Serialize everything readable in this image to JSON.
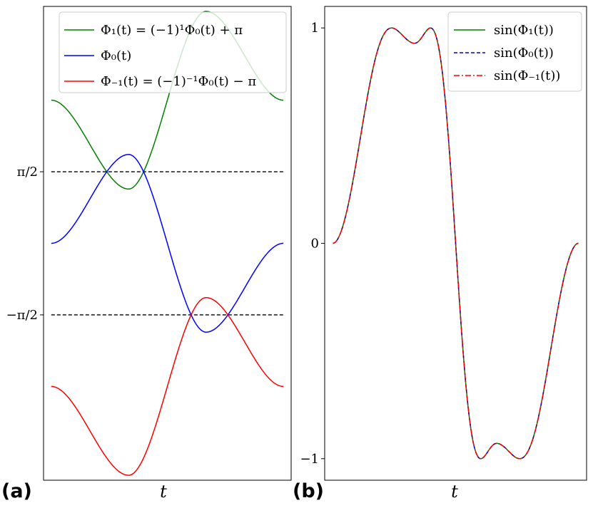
{
  "chart_data": [
    {
      "panel_label": "(a)",
      "type": "line",
      "xlabel": "t",
      "ylabel": "",
      "ylim": [
        -5.2,
        5.2
      ],
      "xlim": [
        -0.1,
        3.1
      ],
      "y_ticks": [
        {
          "value": 1.5708,
          "label": "π/2"
        },
        {
          "value": -1.5708,
          "label": "−π/2"
        }
      ],
      "hlines": [
        1.5708,
        -1.5708
      ],
      "legend": "top-right",
      "series": [
        {
          "name": "Φ₁(t) = (−1)¹Φ₀(t) + π",
          "color": "#008000",
          "style": "solid",
          "formula": "pi - phi0"
        },
        {
          "name": "Φ₀(t)",
          "color": "#0000ff",
          "style": "solid",
          "formula": "phi0"
        },
        {
          "name": "Φ₋₁(t) = (−1)⁻¹Φ₀(t) − π",
          "color": "#ff0000",
          "style": "solid",
          "formula": "-pi - phi0"
        }
      ]
    },
    {
      "panel_label": "(b)",
      "type": "line",
      "xlabel": "t",
      "ylabel": "",
      "ylim": [
        -1.1,
        1.1
      ],
      "xlim": [
        -0.1,
        3.1
      ],
      "y_ticks": [
        {
          "value": 1,
          "label": "1"
        },
        {
          "value": 0,
          "label": "0"
        },
        {
          "value": -1,
          "label": "−1"
        }
      ],
      "legend": "top-right",
      "series": [
        {
          "name": "sin(Φ₁(t))",
          "color": "#008000",
          "style": "solid"
        },
        {
          "name": "sin(Φ₀(t))",
          "color": "#0000c8",
          "style": "dashed"
        },
        {
          "name": "sin(Φ₋₁(t))",
          "color": "#ff0000",
          "style": "dashdot"
        }
      ]
    }
  ]
}
